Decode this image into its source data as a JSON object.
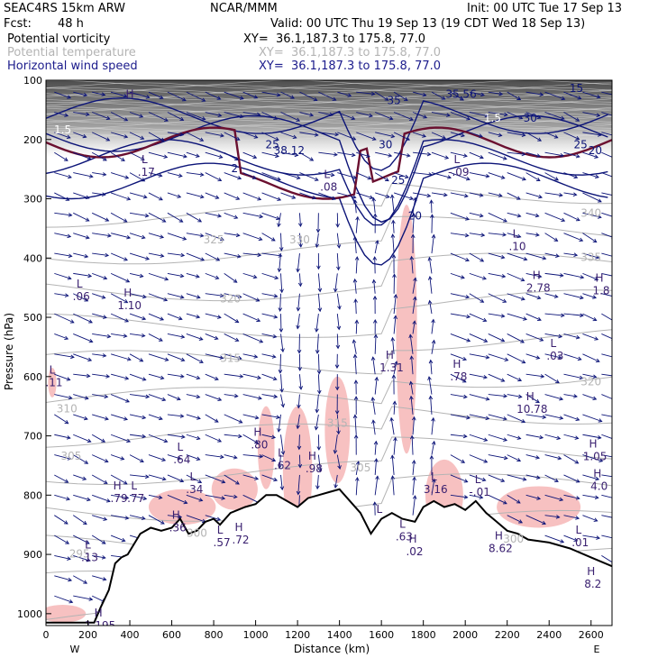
{
  "header": {
    "model": "SEAC4RS 15km ARW",
    "org": "NCAR/MMM",
    "init": "Init: 00 UTC Tue 17 Sep 13",
    "fcst_label": "Fcst:",
    "fcst_value": "48 h",
    "valid": "Valid: 00 UTC Thu 19 Sep 13 (19 CDT Wed 18 Sep 13)",
    "fields": [
      {
        "name": "Potential vorticity",
        "xy": "XY=  36.1,187.3 to 175.8, 77.0",
        "color": "#000000"
      },
      {
        "name": "Potential temperature",
        "xy": "XY=  36.1,187.3 to 175.8, 77.0",
        "color": "#b4b4b4"
      },
      {
        "name": "Horizontal wind speed",
        "xy": "XY=  36.1,187.3 to 175.8, 77.0",
        "color": "#1c1c8c"
      }
    ]
  },
  "chart_data": {
    "type": "cross-section",
    "xlabel": "Distance (km)",
    "ylabel": "Pressure (hPa)",
    "xlim": [
      0,
      2700
    ],
    "ylim": [
      1020,
      100
    ],
    "xticks": [
      0,
      200,
      400,
      600,
      800,
      1000,
      1200,
      1400,
      1600,
      1800,
      2000,
      2200,
      2400,
      2600
    ],
    "yticks": [
      100,
      200,
      300,
      400,
      500,
      600,
      700,
      800,
      900,
      1000
    ],
    "endpoint_labels": {
      "left": "W",
      "right": "E"
    },
    "terrain_profile": [
      [
        0,
        1015
      ],
      [
        120,
        1015
      ],
      [
        230,
        1015
      ],
      [
        260,
        990
      ],
      [
        300,
        960
      ],
      [
        330,
        915
      ],
      [
        360,
        905
      ],
      [
        390,
        900
      ],
      [
        450,
        865
      ],
      [
        500,
        855
      ],
      [
        550,
        860
      ],
      [
        600,
        855
      ],
      [
        640,
        840
      ],
      [
        680,
        865
      ],
      [
        720,
        860
      ],
      [
        760,
        845
      ],
      [
        800,
        840
      ],
      [
        830,
        850
      ],
      [
        880,
        830
      ],
      [
        950,
        820
      ],
      [
        1000,
        815
      ],
      [
        1050,
        800
      ],
      [
        1100,
        800
      ],
      [
        1150,
        810
      ],
      [
        1200,
        820
      ],
      [
        1250,
        805
      ],
      [
        1300,
        800
      ],
      [
        1350,
        795
      ],
      [
        1400,
        790
      ],
      [
        1450,
        810
      ],
      [
        1500,
        830
      ],
      [
        1550,
        865
      ],
      [
        1600,
        840
      ],
      [
        1650,
        830
      ],
      [
        1700,
        840
      ],
      [
        1760,
        845
      ],
      [
        1800,
        820
      ],
      [
        1850,
        810
      ],
      [
        1900,
        820
      ],
      [
        1950,
        815
      ],
      [
        2000,
        825
      ],
      [
        2050,
        810
      ],
      [
        2100,
        830
      ],
      [
        2150,
        845
      ],
      [
        2200,
        860
      ],
      [
        2250,
        865
      ],
      [
        2300,
        875
      ],
      [
        2400,
        880
      ],
      [
        2500,
        890
      ],
      [
        2600,
        905
      ],
      [
        2700,
        920
      ]
    ],
    "pv_dark_labels": [
      {
        "text": "1.5",
        "x": 80,
        "p": 190
      },
      {
        "text": "1.5",
        "x": 2130,
        "p": 170
      }
    ],
    "theta_labels": [
      {
        "text": "310",
        "x": 100,
        "p": 660
      },
      {
        "text": "305",
        "x": 120,
        "p": 740
      },
      {
        "text": "315",
        "x": 880,
        "p": 575
      },
      {
        "text": "320",
        "x": 880,
        "p": 475
      },
      {
        "text": "325",
        "x": 800,
        "p": 375
      },
      {
        "text": "330",
        "x": 1210,
        "p": 375
      },
      {
        "text": "340",
        "x": 2600,
        "p": 330
      },
      {
        "text": "335",
        "x": 2600,
        "p": 405
      },
      {
        "text": "320",
        "x": 2600,
        "p": 615
      },
      {
        "text": "315",
        "x": 1390,
        "p": 685
      },
      {
        "text": "305",
        "x": 1500,
        "p": 760
      },
      {
        "text": "295",
        "x": 160,
        "p": 905
      },
      {
        "text": "300",
        "x": 720,
        "p": 870
      },
      {
        "text": "300",
        "x": 2230,
        "p": 880
      }
    ],
    "wind_labels": [
      {
        "text": "15",
        "x": 2530,
        "p": 120
      },
      {
        "text": "35.56",
        "x": 1980,
        "p": 130
      },
      {
        "text": "30",
        "x": 2310,
        "p": 170
      },
      {
        "text": "25",
        "x": 2550,
        "p": 215
      },
      {
        "text": "20",
        "x": 2620,
        "p": 225
      },
      {
        "text": "35",
        "x": 1660,
        "p": 140
      },
      {
        "text": "30",
        "x": 1620,
        "p": 215
      },
      {
        "text": "38.12",
        "x": 1160,
        "p": 225
      },
      {
        "text": "25",
        "x": 1080,
        "p": 215
      },
      {
        "text": "2",
        "x": 900,
        "p": 255
      },
      {
        "text": "20",
        "x": 1760,
        "p": 335
      },
      {
        "text": "25",
        "x": 1680,
        "p": 275
      }
    ],
    "extrema": [
      {
        "kind": "H",
        "value": "",
        "x": 400,
        "p": 130
      },
      {
        "kind": "L",
        "value": ".17",
        "x": 470,
        "p": 240
      },
      {
        "kind": "L",
        "value": ".08",
        "x": 1340,
        "p": 265
      },
      {
        "kind": "L",
        "value": "-.09",
        "x": 1960,
        "p": 240
      },
      {
        "kind": "L",
        "value": ".10",
        "x": 2240,
        "p": 365
      },
      {
        "kind": "H",
        "value": "2.78",
        "x": 2340,
        "p": 435
      },
      {
        "kind": "H",
        "value": "1.8",
        "x": 2640,
        "p": 440
      },
      {
        "kind": "L",
        "value": ".06",
        "x": 160,
        "p": 450
      },
      {
        "kind": "H",
        "value": "1.10",
        "x": 390,
        "p": 465
      },
      {
        "kind": "H",
        "value": "1.31",
        "x": 1640,
        "p": 570
      },
      {
        "kind": "H",
        "value": ".78",
        "x": 1960,
        "p": 585
      },
      {
        "kind": "L",
        "value": ".03",
        "x": 2420,
        "p": 550
      },
      {
        "kind": "H",
        "value": "10.78",
        "x": 2310,
        "p": 640
      },
      {
        "kind": "L",
        "value": ".11",
        "x": 30,
        "p": 595
      },
      {
        "kind": "H",
        "value": ".80",
        "x": 1010,
        "p": 700
      },
      {
        "kind": "L",
        "value": ".62",
        "x": 1120,
        "p": 735
      },
      {
        "kind": "H",
        "value": ".98",
        "x": 1270,
        "p": 740
      },
      {
        "kind": "L",
        "value": ".64",
        "x": 640,
        "p": 725
      },
      {
        "kind": "L",
        "value": ".34",
        "x": 700,
        "p": 775
      },
      {
        "kind": "H",
        "value": ".79",
        "x": 340,
        "p": 790
      },
      {
        "kind": "L",
        "value": ".77",
        "x": 420,
        "p": 790
      },
      {
        "kind": "L",
        "value": "3.16",
        "x": 1850,
        "p": 775
      },
      {
        "kind": "L",
        "value": "-.01",
        "x": 2060,
        "p": 780
      },
      {
        "kind": "H",
        "value": "1.05",
        "x": 2610,
        "p": 720
      },
      {
        "kind": "H",
        "value": "4.0",
        "x": 2630,
        "p": 770
      },
      {
        "kind": "H",
        "value": ".36",
        "x": 620,
        "p": 840
      },
      {
        "kind": "L",
        "value": ".57",
        "x": 830,
        "p": 865
      },
      {
        "kind": "H",
        "value": ".72",
        "x": 920,
        "p": 860
      },
      {
        "kind": "L",
        "value": "",
        "x": 1590,
        "p": 830
      },
      {
        "kind": "L",
        "value": ".63",
        "x": 1700,
        "p": 855
      },
      {
        "kind": "H",
        "value": ".02",
        "x": 1750,
        "p": 880
      },
      {
        "kind": "H",
        "value": "8.62",
        "x": 2160,
        "p": 875
      },
      {
        "kind": "L",
        "value": ".01",
        "x": 2540,
        "p": 865
      },
      {
        "kind": "H",
        "value": "8.2",
        "x": 2600,
        "p": 935
      },
      {
        "kind": "L",
        "value": ".13",
        "x": 200,
        "p": 890
      },
      {
        "kind": "H",
        "value": "1.195",
        "x": 250,
        "p": 1005
      }
    ],
    "colors": {
      "pv_shade": "#555555",
      "pv_contour": "#6b1030",
      "theta": "#b4b4b4",
      "wind": "#0c1478",
      "rh_shade": "#f6b6b6",
      "terrain": "#000000"
    }
  }
}
